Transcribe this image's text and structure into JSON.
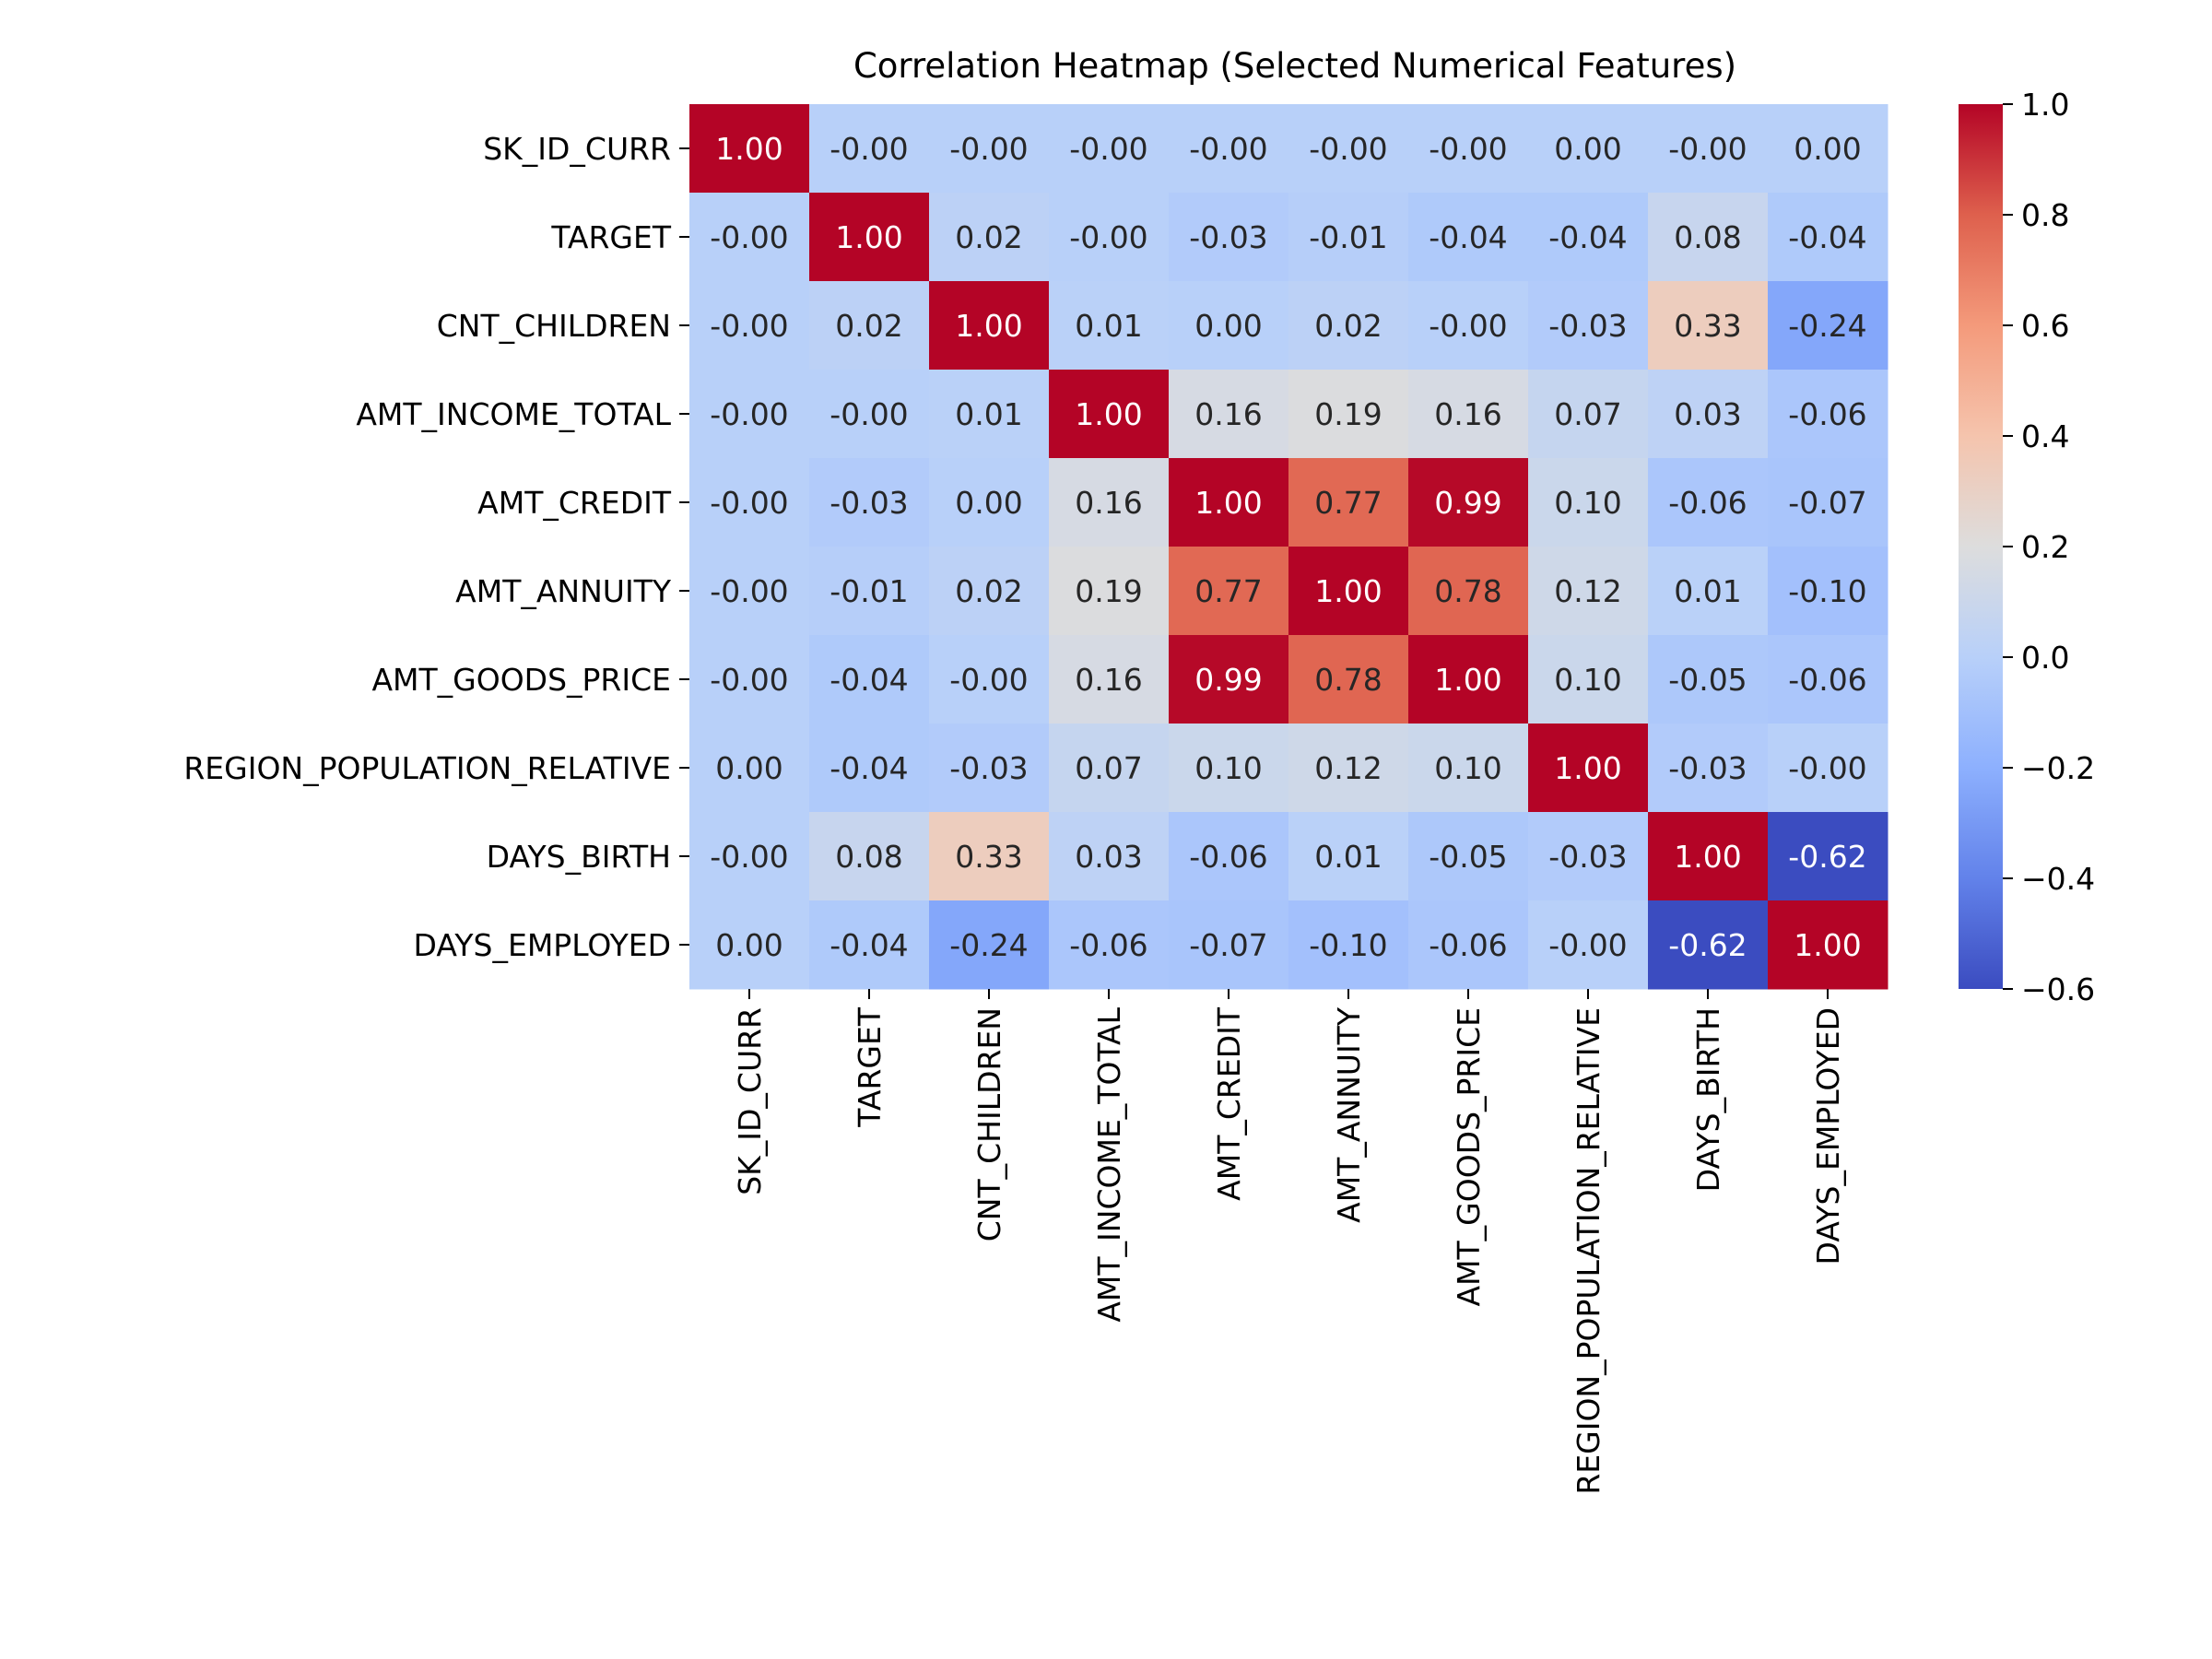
{
  "chart_data": {
    "type": "heatmap",
    "title": "Correlation Heatmap (Selected Numerical Features)",
    "xlabel": "",
    "ylabel": "",
    "labels": [
      "SK_ID_CURR",
      "TARGET",
      "CNT_CHILDREN",
      "AMT_INCOME_TOTAL",
      "AMT_CREDIT",
      "AMT_ANNUITY",
      "AMT_GOODS_PRICE",
      "REGION_POPULATION_RELATIVE",
      "DAYS_BIRTH",
      "DAYS_EMPLOYED"
    ],
    "cell_text": [
      [
        "1.00",
        "-0.00",
        "-0.00",
        "-0.00",
        "-0.00",
        "-0.00",
        "-0.00",
        "0.00",
        "-0.00",
        "0.00"
      ],
      [
        "-0.00",
        "1.00",
        "0.02",
        "-0.00",
        "-0.03",
        "-0.01",
        "-0.04",
        "-0.04",
        "0.08",
        "-0.04"
      ],
      [
        "-0.00",
        "0.02",
        "1.00",
        "0.01",
        "0.00",
        "0.02",
        "-0.00",
        "-0.03",
        "0.33",
        "-0.24"
      ],
      [
        "-0.00",
        "-0.00",
        "0.01",
        "1.00",
        "0.16",
        "0.19",
        "0.16",
        "0.07",
        "0.03",
        "-0.06"
      ],
      [
        "-0.00",
        "-0.03",
        "0.00",
        "0.16",
        "1.00",
        "0.77",
        "0.99",
        "0.10",
        "-0.06",
        "-0.07"
      ],
      [
        "-0.00",
        "-0.01",
        "0.02",
        "0.19",
        "0.77",
        "1.00",
        "0.78",
        "0.12",
        "0.01",
        "-0.10"
      ],
      [
        "-0.00",
        "-0.04",
        "-0.00",
        "0.16",
        "0.99",
        "0.78",
        "1.00",
        "0.10",
        "-0.05",
        "-0.06"
      ],
      [
        "0.00",
        "-0.04",
        "-0.03",
        "0.07",
        "0.10",
        "0.12",
        "0.10",
        "1.00",
        "-0.03",
        "-0.00"
      ],
      [
        "-0.00",
        "0.08",
        "0.33",
        "0.03",
        "-0.06",
        "0.01",
        "-0.05",
        "-0.03",
        "1.00",
        "-0.62"
      ],
      [
        "0.00",
        "-0.04",
        "-0.24",
        "-0.06",
        "-0.07",
        "-0.10",
        "-0.06",
        "-0.00",
        "-0.62",
        "1.00"
      ]
    ],
    "colorbar": {
      "min": -0.6,
      "max": 1.0,
      "ticks": [
        1.0,
        0.8,
        0.6,
        0.4,
        0.2,
        0.0,
        -0.2,
        -0.4,
        -0.6
      ],
      "tick_labels": [
        "1.0",
        "0.8",
        "0.6",
        "0.4",
        "0.2",
        "0.0",
        "−0.2",
        "−0.4",
        "−0.6"
      ],
      "colormap": "coolwarm"
    },
    "grid": false,
    "legend": "colorbar-right"
  }
}
